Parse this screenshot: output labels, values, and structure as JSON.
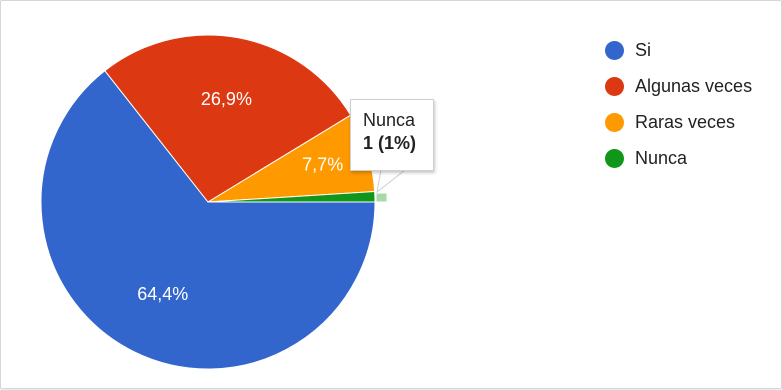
{
  "chart_data": {
    "type": "pie",
    "categories": [
      "Si",
      "Algunas veces",
      "Raras veces",
      "Nunca"
    ],
    "values": [
      64.4,
      26.9,
      7.7,
      1.0
    ],
    "slice_labels": [
      "64,4%",
      "26,9%",
      "7,7%",
      ""
    ],
    "colors": [
      "#3366cc",
      "#dc3912",
      "#ff9900",
      "#109618"
    ],
    "legend_position": "right",
    "title": ""
  },
  "tooltip": {
    "title": "Nunca",
    "value": "1 (1%)"
  }
}
